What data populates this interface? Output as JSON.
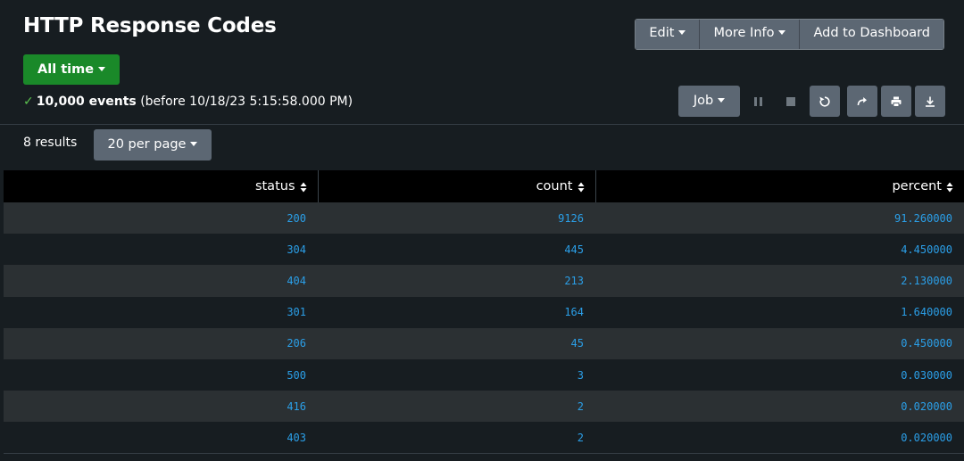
{
  "header": {
    "title": "HTTP Response Codes",
    "actions": {
      "edit": "Edit",
      "more_info": "More Info",
      "add_to_dashboard": "Add to Dashboard"
    }
  },
  "time_picker": {
    "label": "All time"
  },
  "job_status": {
    "check": "✓",
    "events": "10,000 events",
    "detail": "(before 10/18/23 5:15:58.000 PM)"
  },
  "job_controls": {
    "job_label": "Job",
    "icons": [
      "pause-icon",
      "stop-icon",
      "refresh-icon",
      "share-icon",
      "print-icon",
      "export-icon"
    ]
  },
  "results": {
    "count_label": "8 results",
    "per_page_label": "20 per page"
  },
  "table": {
    "columns": [
      {
        "key": "status",
        "label": "status"
      },
      {
        "key": "count",
        "label": "count"
      },
      {
        "key": "percent",
        "label": "percent"
      }
    ],
    "rows": [
      {
        "status": "200",
        "count": "9126",
        "percent": "91.260000"
      },
      {
        "status": "304",
        "count": "445",
        "percent": "4.450000"
      },
      {
        "status": "404",
        "count": "213",
        "percent": "2.130000"
      },
      {
        "status": "301",
        "count": "164",
        "percent": "1.640000"
      },
      {
        "status": "206",
        "count": "45",
        "percent": "0.450000"
      },
      {
        "status": "500",
        "count": "3",
        "percent": "0.030000"
      },
      {
        "status": "416",
        "count": "2",
        "percent": "0.020000"
      },
      {
        "status": "403",
        "count": "2",
        "percent": "0.020000"
      }
    ]
  },
  "colors": {
    "background": "#171d21",
    "row_alt": "#2b3033",
    "button": "#5c6773",
    "time_button": "#1a8929",
    "value_text": "#2b9fe8",
    "success_check": "#5bc24f"
  }
}
